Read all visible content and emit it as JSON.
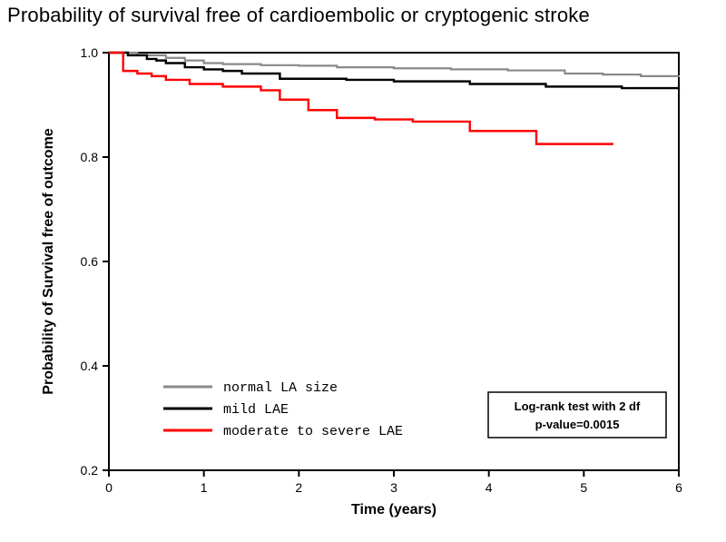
{
  "title": "Probability of survival free of cardioembolic or cryptogenic stroke",
  "chart": {
    "type": "kaplan-meier",
    "background_color": "#ffffff",
    "title_fontsize": 22,
    "xlabel": "Time (years)",
    "ylabel": "Probability of Survival free of outcome",
    "label_fontsize": 16,
    "label_fontweight": "bold",
    "tick_fontsize": 14,
    "xlim": [
      0,
      6
    ],
    "ylim": [
      0.2,
      1.0
    ],
    "xticks": [
      0,
      1,
      2,
      3,
      4,
      5,
      6
    ],
    "yticks": [
      0.2,
      0.4,
      0.6,
      0.8,
      1.0
    ],
    "axis_color": "#000000",
    "axis_width": 2,
    "series": [
      {
        "name": "normal LA size",
        "color": "#8a8a8a",
        "line_width": 2.2,
        "x": [
          0.0,
          0.3,
          0.6,
          0.8,
          1.0,
          1.2,
          1.6,
          2.0,
          2.4,
          3.0,
          3.6,
          4.2,
          4.8,
          5.2,
          5.6,
          6.0
        ],
        "y": [
          1.0,
          0.995,
          0.99,
          0.985,
          0.98,
          0.978,
          0.976,
          0.975,
          0.972,
          0.97,
          0.968,
          0.966,
          0.96,
          0.958,
          0.955,
          0.953
        ]
      },
      {
        "name": "mild LAE",
        "color": "#000000",
        "line_width": 2.4,
        "x": [
          0.0,
          0.2,
          0.4,
          0.5,
          0.6,
          0.8,
          1.0,
          1.2,
          1.4,
          1.8,
          2.5,
          3.0,
          3.8,
          4.6,
          5.4,
          6.0
        ],
        "y": [
          1.0,
          0.995,
          0.988,
          0.985,
          0.98,
          0.972,
          0.968,
          0.965,
          0.96,
          0.95,
          0.948,
          0.945,
          0.94,
          0.935,
          0.932,
          0.93
        ]
      },
      {
        "name": "moderate to severe LAE",
        "color": "#ff0000",
        "line_width": 2.4,
        "x": [
          0.0,
          0.15,
          0.3,
          0.45,
          0.6,
          0.85,
          1.2,
          1.6,
          1.8,
          2.1,
          2.4,
          2.8,
          3.2,
          3.8,
          4.5,
          5.3
        ],
        "y": [
          1.0,
          0.965,
          0.96,
          0.955,
          0.948,
          0.94,
          0.935,
          0.928,
          0.91,
          0.89,
          0.875,
          0.872,
          0.868,
          0.85,
          0.825,
          0.823
        ]
      }
    ],
    "legend": {
      "position": "bottom-left-inside",
      "font_family": "monospace",
      "font_size": 15,
      "swatch_width": 54,
      "swatch_height": 3,
      "items": [
        {
          "label": "normal LA size",
          "series_ref": 0
        },
        {
          "label": "mild LAE",
          "series_ref": 1
        },
        {
          "label": "moderate to severe LAE",
          "series_ref": 2
        }
      ]
    },
    "annotation_box": {
      "lines": [
        "Log-rank test with 2 df",
        "p-value=0.0015"
      ],
      "font_size": 13,
      "font_weight": "bold",
      "border_color": "#000000",
      "border_width": 1.5,
      "position": "bottom-right-inside"
    }
  }
}
